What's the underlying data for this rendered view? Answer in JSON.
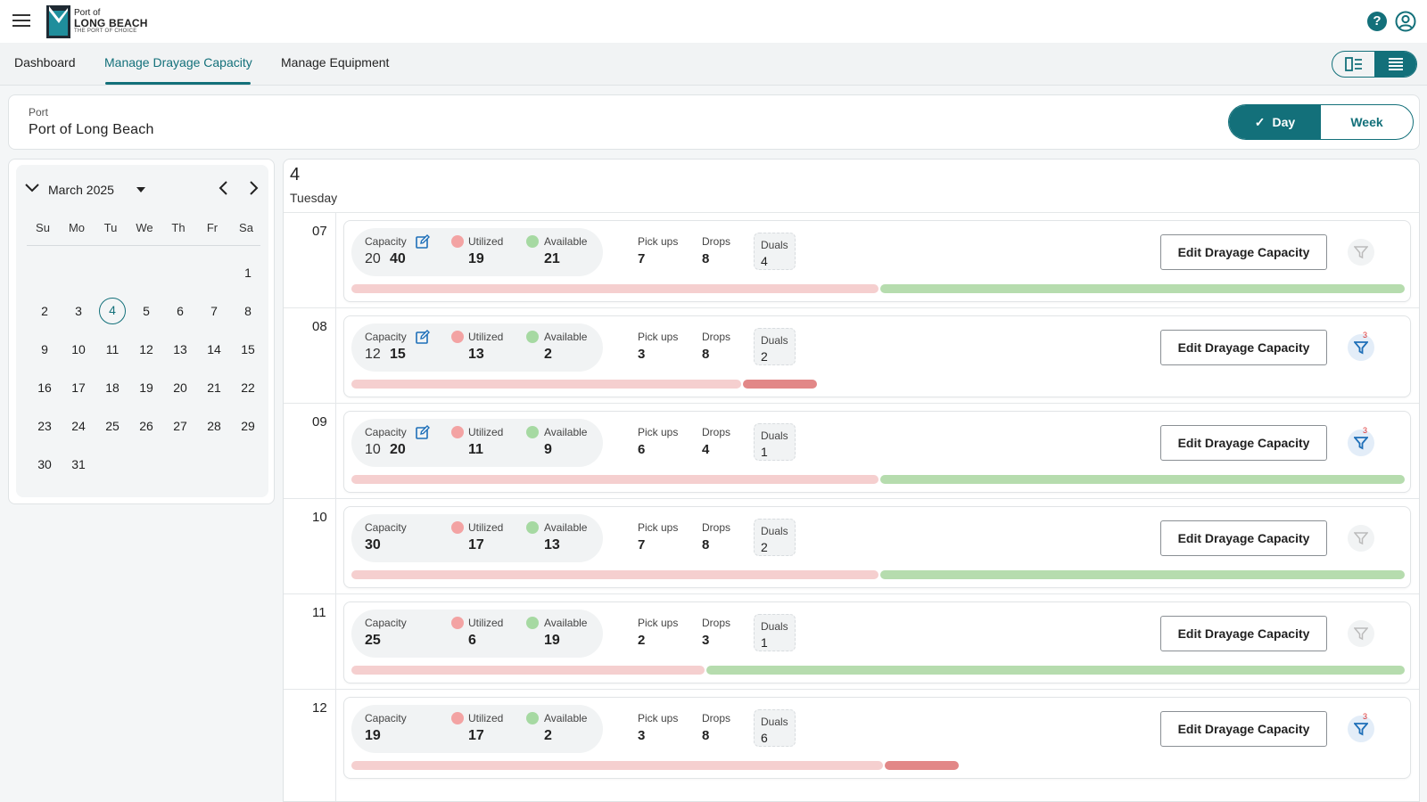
{
  "header": {
    "logo": {
      "line1": "Port of",
      "line2": "LONG BEACH",
      "line3": "THE PORT OF CHOICE"
    },
    "help_glyph": "?"
  },
  "nav": {
    "tabs": [
      {
        "label": "Dashboard"
      },
      {
        "label": "Manage Drayage Capacity"
      },
      {
        "label": "Manage Equipment"
      }
    ],
    "active_tab": "Manage Drayage Capacity"
  },
  "port": {
    "label": "Port",
    "value": "Port of Long Beach"
  },
  "range_toggle": {
    "day": "Day",
    "week": "Week",
    "selected": "Day"
  },
  "calendar": {
    "month_label": "March 2025",
    "weekdays": [
      "Su",
      "Mo",
      "Tu",
      "We",
      "Th",
      "Fr",
      "Sa"
    ],
    "weeks": [
      [
        "",
        "",
        "",
        "",
        "",
        "",
        "1"
      ],
      [
        "2",
        "3",
        "4",
        "5",
        "6",
        "7",
        "8"
      ],
      [
        "9",
        "10",
        "11",
        "12",
        "13",
        "14",
        "15"
      ],
      [
        "16",
        "17",
        "18",
        "19",
        "20",
        "21",
        "22"
      ],
      [
        "23",
        "24",
        "25",
        "26",
        "27",
        "28",
        "29"
      ],
      [
        "30",
        "31",
        "",
        "",
        "",
        "",
        ""
      ]
    ],
    "selected_day": "4"
  },
  "schedule": {
    "date": "4",
    "weekday": "Tuesday",
    "labels": {
      "capacity": "Capacity",
      "utilized": "Utilized",
      "available": "Available",
      "pickups": "Pick ups",
      "drops": "Drops",
      "duals": "Duals",
      "edit_button": "Edit Drayage Capacity"
    },
    "colors": {
      "accent": "#13707a",
      "utilized": "#f3a3a3",
      "available": "#a6d9a2",
      "over_capacity": "#e28787"
    },
    "slots": [
      {
        "hour": "07",
        "capacity_old": "20",
        "capacity": "40",
        "edited": true,
        "utilized": "19",
        "available": "21",
        "pickups": "7",
        "drops": "8",
        "duals": "4",
        "filter_badge": "",
        "utilized_fraction": 0.5,
        "over_fraction": 0
      },
      {
        "hour": "08",
        "capacity_old": "12",
        "capacity": "15",
        "edited": true,
        "utilized": "13",
        "available": "2",
        "pickups": "3",
        "drops": "8",
        "duals": "2",
        "filter_badge": "3",
        "utilized_fraction": 0.37,
        "over_fraction": 0.07
      },
      {
        "hour": "09",
        "capacity_old": "10",
        "capacity": "20",
        "edited": true,
        "utilized": "11",
        "available": "9",
        "pickups": "6",
        "drops": "4",
        "duals": "1",
        "filter_badge": "3",
        "utilized_fraction": 0.5,
        "over_fraction": 0
      },
      {
        "hour": "10",
        "capacity_old": "",
        "capacity": "30",
        "edited": false,
        "utilized": "17",
        "available": "13",
        "pickups": "7",
        "drops": "8",
        "duals": "2",
        "filter_badge": "",
        "utilized_fraction": 0.5,
        "over_fraction": 0
      },
      {
        "hour": "11",
        "capacity_old": "",
        "capacity": "25",
        "edited": false,
        "utilized": "6",
        "available": "19",
        "pickups": "2",
        "drops": "3",
        "duals": "1",
        "filter_badge": "",
        "utilized_fraction": 0.335,
        "over_fraction": 0
      },
      {
        "hour": "12",
        "capacity_old": "",
        "capacity": "19",
        "edited": false,
        "utilized": "17",
        "available": "2",
        "pickups": "3",
        "drops": "8",
        "duals": "6",
        "filter_badge": "3",
        "utilized_fraction": 0.505,
        "over_fraction": 0.07
      }
    ]
  }
}
